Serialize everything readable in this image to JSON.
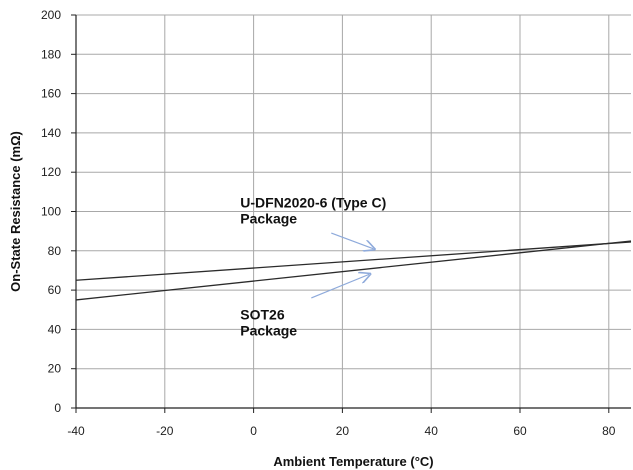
{
  "chart_data": {
    "type": "line",
    "title": "",
    "xlabel": "Ambient Temperature (°C)",
    "ylabel": "On-State Resistance (mΩ)",
    "xlim": [
      -40,
      85
    ],
    "ylim": [
      0,
      200
    ],
    "x_ticks": [
      -40,
      -20,
      0,
      20,
      40,
      60,
      80
    ],
    "y_ticks": [
      0,
      20,
      40,
      60,
      80,
      100,
      120,
      140,
      160,
      180,
      200
    ],
    "grid": true,
    "legend": "none",
    "series": [
      {
        "x": [
          -40,
          85
        ],
        "y": [
          65,
          84.5
        ]
      },
      {
        "x": [
          -40,
          85
        ],
        "y": [
          55,
          85
        ]
      }
    ],
    "annotations": [
      {
        "lines": [
          "U-DFN2020-6 (Type C)",
          "Package"
        ],
        "x": -3,
        "y": 102,
        "arrow_from": [
          17.5,
          89
        ],
        "arrow_to": [
          27,
          81
        ]
      },
      {
        "lines": [
          "SOT26",
          "Package"
        ],
        "x": -3,
        "y": 45,
        "arrow_from": [
          13,
          56
        ],
        "arrow_to": [
          26,
          68
        ]
      }
    ]
  },
  "colors": {
    "line": "#2b2b2b",
    "grid": "#a8a8a8",
    "axis": "#222222",
    "arrow": "#8eaadb",
    "text": "#111111"
  }
}
